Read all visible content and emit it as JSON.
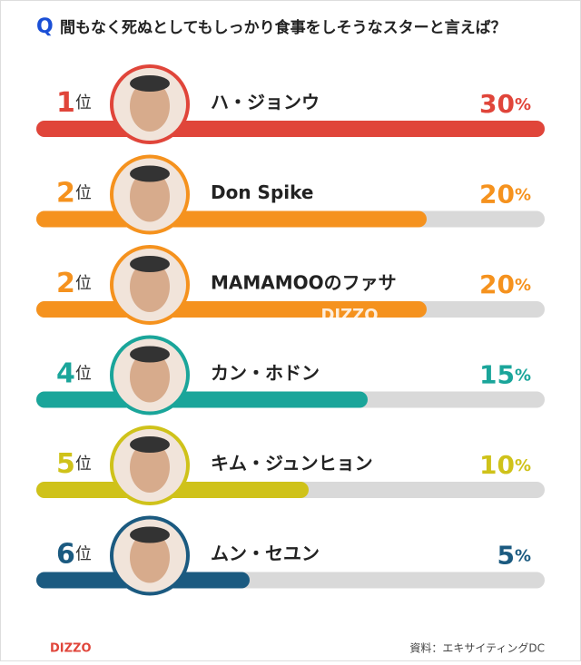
{
  "chart_data": {
    "type": "bar",
    "title_mark": "Q",
    "title": "間もなく死ぬとしてもしっかり食事をしそうなスターと言えば？",
    "ranks": [
      1,
      2,
      2,
      4,
      5,
      6
    ],
    "rank_suffix": "位",
    "categories": [
      "ハ・ジョンウ",
      "Don Spike",
      "MAMAMOOのファサ",
      "カン・ホドン",
      "キム・ジュンヒョン",
      "ムン・セユン"
    ],
    "values": [
      30,
      20,
      20,
      15,
      10,
      5
    ],
    "unit": "%",
    "colors": [
      "#e0453a",
      "#f5921e",
      "#f5921e",
      "#1aa59a",
      "#cfc21a",
      "#1b5a80"
    ],
    "track_color": "#d9d9d9",
    "xlim": [
      0,
      30
    ],
    "watermark": "DIZZO",
    "logo": "DIZZO",
    "source": "資料：エキサイティングDC"
  }
}
